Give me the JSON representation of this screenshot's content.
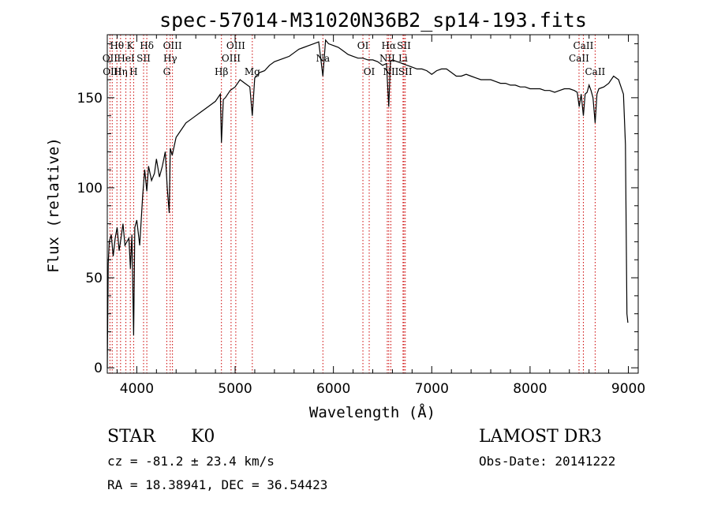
{
  "chart_data": {
    "type": "line",
    "title": "spec-57014-M31020N36B2_sp14-193.fits",
    "xlabel": "Wavelength (Å)",
    "ylabel": "Flux (relative)",
    "xlim": [
      3700,
      9100
    ],
    "ylim": [
      -3,
      185
    ],
    "xticks": [
      4000,
      5000,
      6000,
      7000,
      8000,
      9000
    ],
    "yticks": [
      0,
      50,
      100,
      150
    ],
    "series": [
      {
        "name": "flux",
        "x": [
          3700,
          3710,
          3720,
          3740,
          3760,
          3780,
          3800,
          3820,
          3840,
          3860,
          3880,
          3900,
          3920,
          3935,
          3950,
          3968,
          3980,
          4000,
          4030,
          4060,
          4080,
          4102,
          4120,
          4150,
          4180,
          4200,
          4230,
          4260,
          4290,
          4310,
          4330,
          4340,
          4360,
          4400,
          4450,
          4500,
          4550,
          4600,
          4650,
          4700,
          4750,
          4800,
          4850,
          4861,
          4880,
          4900,
          4950,
          5000,
          5050,
          5100,
          5150,
          5175,
          5200,
          5250,
          5300,
          5350,
          5400,
          5450,
          5500,
          5550,
          5600,
          5650,
          5700,
          5750,
          5800,
          5850,
          5893,
          5920,
          5950,
          6000,
          6050,
          6100,
          6150,
          6200,
          6250,
          6300,
          6350,
          6400,
          6450,
          6500,
          6540,
          6563,
          6580,
          6600,
          6650,
          6700,
          6750,
          6800,
          6850,
          6900,
          6950,
          7000,
          7050,
          7100,
          7150,
          7200,
          7250,
          7300,
          7350,
          7400,
          7450,
          7500,
          7550,
          7600,
          7650,
          7700,
          7750,
          7800,
          7850,
          7900,
          7950,
          8000,
          8050,
          8100,
          8150,
          8200,
          8250,
          8300,
          8350,
          8400,
          8450,
          8480,
          8500,
          8520,
          8542,
          8560,
          8580,
          8600,
          8620,
          8640,
          8662,
          8680,
          8700,
          8750,
          8800,
          8850,
          8900,
          8950,
          8970,
          8985,
          8995
        ],
        "values": [
          0,
          58,
          70,
          74,
          62,
          72,
          78,
          65,
          72,
          80,
          68,
          70,
          72,
          55,
          74,
          18,
          78,
          82,
          68,
          96,
          110,
          98,
          112,
          104,
          108,
          116,
          106,
          112,
          120,
          100,
          86,
          122,
          118,
          128,
          132,
          136,
          138,
          140,
          142,
          144,
          146,
          148,
          152,
          125,
          149,
          150,
          154,
          156,
          160,
          158,
          156,
          140,
          161,
          164,
          165,
          168,
          170,
          171,
          172,
          173,
          175,
          177,
          178,
          179,
          180,
          181,
          162,
          182,
          180,
          179,
          178,
          176,
          174,
          173,
          172,
          172,
          171,
          171,
          170,
          168,
          169,
          145,
          170,
          171,
          170,
          169,
          168,
          167,
          166,
          166,
          165,
          163,
          165,
          166,
          166,
          164,
          162,
          162,
          163,
          162,
          161,
          160,
          160,
          160,
          159,
          158,
          158,
          157,
          157,
          156,
          156,
          155,
          155,
          155,
          154,
          154,
          153,
          154,
          155,
          155,
          154,
          153,
          145,
          152,
          140,
          152,
          153,
          157,
          154,
          150,
          136,
          152,
          155,
          156,
          158,
          162,
          160,
          152,
          124,
          30,
          25
        ]
      }
    ],
    "spectral_lines": [
      {
        "label": "Hθ",
        "x": 3798,
        "row": 1
      },
      {
        "label": "OII",
        "x": 3727,
        "row": 2
      },
      {
        "label": "OIII",
        "x": 3750,
        "row": 3
      },
      {
        "label": "Hη",
        "x": 3835,
        "row": 3
      },
      {
        "label": "K",
        "x": 3934,
        "row": 1
      },
      {
        "label": "HeI",
        "x": 3889,
        "row": 2
      },
      {
        "label": "H",
        "x": 3968,
        "row": 3
      },
      {
        "label": "SII",
        "x": 4069,
        "row": 2
      },
      {
        "label": "Hδ",
        "x": 4102,
        "row": 1
      },
      {
        "label": "OIII",
        "x": 4363,
        "row": 1
      },
      {
        "label": "Hγ",
        "x": 4340,
        "row": 2
      },
      {
        "label": "G",
        "x": 4305,
        "row": 3
      },
      {
        "label": "Hβ",
        "x": 4861,
        "row": 3
      },
      {
        "label": "OIII",
        "x": 4959,
        "row": 2
      },
      {
        "label": "OIII",
        "x": 5007,
        "row": 1
      },
      {
        "label": "Mg",
        "x": 5175,
        "row": 3
      },
      {
        "label": "Na",
        "x": 5893,
        "row": 2
      },
      {
        "label": "OI",
        "x": 6300,
        "row": 1
      },
      {
        "label": "OI",
        "x": 6364,
        "row": 3
      },
      {
        "label": "Hα",
        "x": 6563,
        "row": 1
      },
      {
        "label": "NII",
        "x": 6548,
        "row": 2
      },
      {
        "label": "NII",
        "x": 6584,
        "row": 3
      },
      {
        "label": "SII",
        "x": 6717,
        "row": 1
      },
      {
        "label": "Li",
        "x": 6708,
        "row": 2
      },
      {
        "label": "SII",
        "x": 6731,
        "row": 3
      },
      {
        "label": "CaII",
        "x": 8542,
        "row": 1
      },
      {
        "label": "CaII",
        "x": 8498,
        "row": 2
      },
      {
        "label": "CaII",
        "x": 8662,
        "row": 3
      }
    ]
  },
  "info": {
    "class": "STAR",
    "subclass": "K0",
    "survey": "LAMOST DR3",
    "cz": "cz = -81.2 ± 23.4 km/s",
    "obsdate": "Obs-Date: 20141222",
    "radec": "RA =  18.38941, DEC =  36.54423"
  }
}
